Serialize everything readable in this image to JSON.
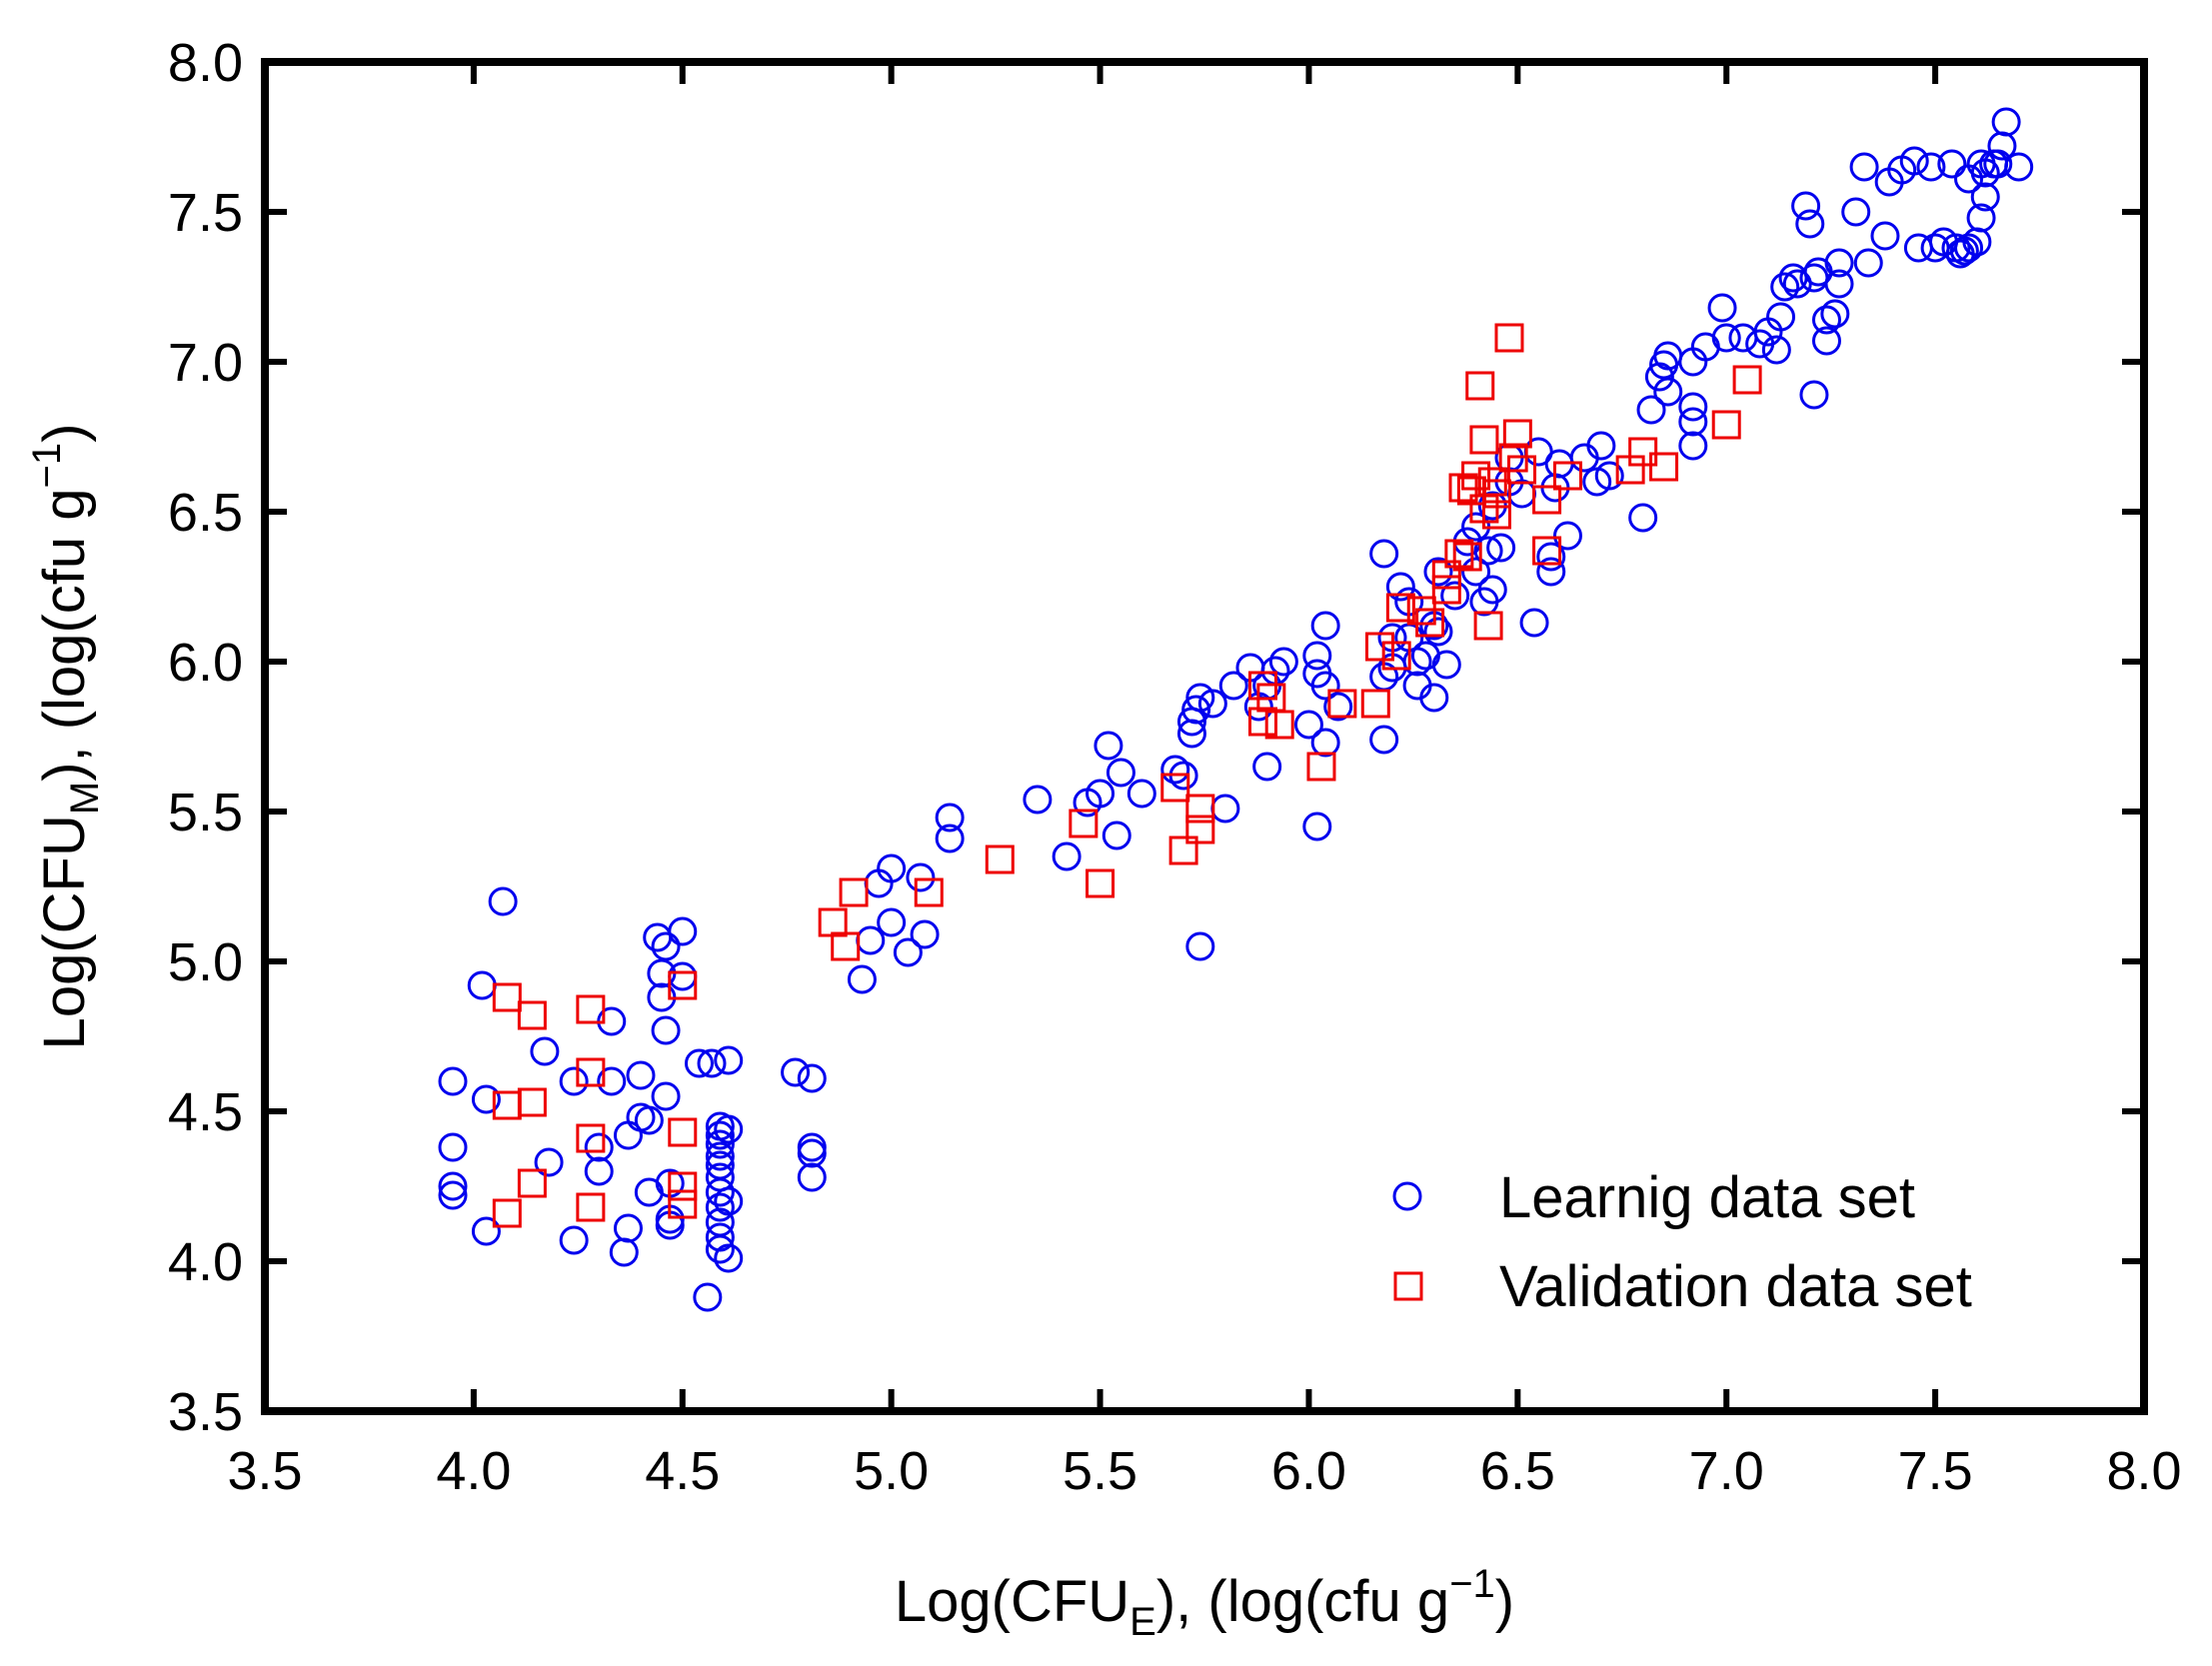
{
  "chart_data": {
    "type": "scatter",
    "title": "",
    "xlabel": {
      "base": "Log(CFU",
      "sub": "E",
      "rest": "), (log(cfu  g",
      "sup": "−1",
      "close": ")"
    },
    "ylabel": {
      "base": "Log(CFU",
      "sub": "M",
      "rest": "), (log(cfu  g",
      "sup": "−1",
      "close": ")"
    },
    "xlim": [
      3.5,
      8.0
    ],
    "ylim": [
      3.5,
      8.0
    ],
    "x_ticks": [
      "3.5",
      "4.0",
      "4.5",
      "5.0",
      "5.5",
      "6.0",
      "6.5",
      "7.0",
      "7.5",
      "8.0"
    ],
    "y_ticks": [
      "3.5",
      "4.0",
      "4.5",
      "5.0",
      "5.5",
      "6.0",
      "6.5",
      "7.0",
      "7.5",
      "8.0"
    ],
    "grid": false,
    "legend_position": "bottom-right",
    "colors": {
      "learning": "#0000ee",
      "validation": "#ee0000"
    },
    "series": [
      {
        "name": "Learnig data set",
        "marker": "circle",
        "points": [
          [
            3.95,
            4.6
          ],
          [
            3.95,
            4.38
          ],
          [
            3.95,
            4.25
          ],
          [
            3.95,
            4.22
          ],
          [
            4.02,
            4.92
          ],
          [
            4.03,
            4.54
          ],
          [
            4.03,
            4.1
          ],
          [
            4.07,
            5.2
          ],
          [
            4.17,
            4.7
          ],
          [
            4.18,
            4.33
          ],
          [
            4.24,
            4.07
          ],
          [
            4.24,
            4.6
          ],
          [
            4.3,
            4.38
          ],
          [
            4.3,
            4.3
          ],
          [
            4.33,
            4.6
          ],
          [
            4.33,
            4.8
          ],
          [
            4.36,
            4.03
          ],
          [
            4.37,
            4.42
          ],
          [
            4.37,
            4.11
          ],
          [
            4.4,
            4.62
          ],
          [
            4.4,
            4.48
          ],
          [
            4.42,
            4.23
          ],
          [
            4.42,
            4.47
          ],
          [
            4.44,
            5.08
          ],
          [
            4.45,
            4.96
          ],
          [
            4.45,
            4.88
          ],
          [
            4.46,
            4.77
          ],
          [
            4.46,
            5.05
          ],
          [
            4.46,
            4.55
          ],
          [
            4.47,
            4.26
          ],
          [
            4.47,
            4.14
          ],
          [
            4.47,
            4.12
          ],
          [
            4.5,
            5.1
          ],
          [
            4.5,
            4.95
          ],
          [
            4.54,
            4.66
          ],
          [
            4.56,
            3.88
          ],
          [
            4.57,
            4.66
          ],
          [
            4.61,
            4.67
          ],
          [
            4.59,
            4.45
          ],
          [
            4.59,
            4.42
          ],
          [
            4.59,
            4.39
          ],
          [
            4.59,
            4.35
          ],
          [
            4.59,
            4.32
          ],
          [
            4.59,
            4.28
          ],
          [
            4.59,
            4.23
          ],
          [
            4.59,
            4.18
          ],
          [
            4.59,
            4.13
          ],
          [
            4.59,
            4.08
          ],
          [
            4.59,
            4.04
          ],
          [
            4.61,
            4.01
          ],
          [
            4.61,
            4.44
          ],
          [
            4.61,
            4.2
          ],
          [
            4.77,
            4.63
          ],
          [
            4.81,
            4.61
          ],
          [
            4.81,
            4.38
          ],
          [
            4.81,
            4.36
          ],
          [
            4.81,
            4.28
          ],
          [
            4.93,
            4.94
          ],
          [
            4.95,
            5.07
          ],
          [
            4.97,
            5.26
          ],
          [
            5.0,
            5.31
          ],
          [
            5.0,
            5.13
          ],
          [
            5.04,
            5.03
          ],
          [
            5.07,
            5.28
          ],
          [
            5.08,
            5.09
          ],
          [
            5.14,
            5.48
          ],
          [
            5.14,
            5.41
          ],
          [
            5.35,
            5.54
          ],
          [
            5.42,
            5.35
          ],
          [
            5.47,
            5.53
          ],
          [
            5.5,
            5.56
          ],
          [
            5.52,
            5.72
          ],
          [
            5.54,
            5.42
          ],
          [
            5.55,
            5.63
          ],
          [
            5.6,
            5.56
          ],
          [
            5.68,
            5.64
          ],
          [
            5.7,
            5.62
          ],
          [
            5.72,
            5.76
          ],
          [
            5.72,
            5.8
          ],
          [
            5.73,
            5.84
          ],
          [
            5.74,
            5.88
          ],
          [
            5.74,
            5.05
          ],
          [
            5.77,
            5.86
          ],
          [
            5.8,
            5.51
          ],
          [
            5.82,
            5.92
          ],
          [
            5.86,
            5.98
          ],
          [
            5.88,
            5.85
          ],
          [
            5.9,
            5.65
          ],
          [
            5.9,
            5.92
          ],
          [
            5.92,
            5.97
          ],
          [
            5.94,
            6.0
          ],
          [
            6.0,
            5.79
          ],
          [
            6.02,
            6.02
          ],
          [
            6.02,
            5.45
          ],
          [
            6.02,
            5.96
          ],
          [
            6.04,
            6.12
          ],
          [
            6.04,
            5.92
          ],
          [
            6.04,
            5.73
          ],
          [
            6.07,
            5.85
          ],
          [
            6.18,
            6.36
          ],
          [
            6.18,
            5.95
          ],
          [
            6.18,
            5.74
          ],
          [
            6.2,
            6.08
          ],
          [
            6.2,
            5.98
          ],
          [
            6.22,
            6.25
          ],
          [
            6.24,
            6.2
          ],
          [
            6.24,
            6.08
          ],
          [
            6.26,
            6.0
          ],
          [
            6.26,
            5.92
          ],
          [
            6.28,
            6.02
          ],
          [
            6.3,
            5.88
          ],
          [
            6.3,
            6.12
          ],
          [
            6.31,
            6.3
          ],
          [
            6.31,
            6.1
          ],
          [
            6.33,
            5.99
          ],
          [
            6.35,
            6.22
          ],
          [
            6.38,
            6.4
          ],
          [
            6.4,
            6.45
          ],
          [
            6.4,
            6.3
          ],
          [
            6.42,
            6.2
          ],
          [
            6.43,
            6.37
          ],
          [
            6.44,
            6.24
          ],
          [
            6.44,
            6.52
          ],
          [
            6.46,
            6.38
          ],
          [
            6.48,
            6.68
          ],
          [
            6.48,
            6.6
          ],
          [
            6.51,
            6.56
          ],
          [
            6.54,
            6.13
          ],
          [
            6.55,
            6.7
          ],
          [
            6.58,
            6.35
          ],
          [
            6.58,
            6.3
          ],
          [
            6.59,
            6.58
          ],
          [
            6.6,
            6.66
          ],
          [
            6.62,
            6.42
          ],
          [
            6.66,
            6.68
          ],
          [
            6.69,
            6.6
          ],
          [
            6.7,
            6.72
          ],
          [
            6.72,
            6.62
          ],
          [
            6.8,
            6.48
          ],
          [
            6.82,
            6.84
          ],
          [
            6.84,
            6.95
          ],
          [
            6.85,
            6.99
          ],
          [
            6.86,
            7.02
          ],
          [
            6.86,
            6.9
          ],
          [
            6.92,
            6.85
          ],
          [
            6.92,
            6.8
          ],
          [
            6.92,
            6.72
          ],
          [
            6.92,
            7.0
          ],
          [
            6.95,
            7.05
          ],
          [
            6.99,
            7.18
          ],
          [
            7.0,
            7.08
          ],
          [
            7.04,
            7.08
          ],
          [
            7.08,
            7.06
          ],
          [
            7.1,
            7.1
          ],
          [
            7.12,
            7.04
          ],
          [
            7.13,
            7.15
          ],
          [
            7.14,
            7.25
          ],
          [
            7.16,
            7.28
          ],
          [
            7.17,
            7.26
          ],
          [
            7.19,
            7.52
          ],
          [
            7.2,
            7.46
          ],
          [
            7.21,
            7.28
          ],
          [
            7.21,
            6.89
          ],
          [
            7.22,
            7.3
          ],
          [
            7.24,
            7.14
          ],
          [
            7.24,
            7.07
          ],
          [
            7.26,
            7.16
          ],
          [
            7.27,
            7.33
          ],
          [
            7.27,
            7.26
          ],
          [
            7.31,
            7.5
          ],
          [
            7.33,
            7.65
          ],
          [
            7.34,
            7.33
          ],
          [
            7.38,
            7.42
          ],
          [
            7.39,
            7.6
          ],
          [
            7.42,
            7.64
          ],
          [
            7.45,
            7.67
          ],
          [
            7.46,
            7.38
          ],
          [
            7.49,
            7.65
          ],
          [
            7.5,
            7.38
          ],
          [
            7.52,
            7.4
          ],
          [
            7.54,
            7.66
          ],
          [
            7.55,
            7.38
          ],
          [
            7.56,
            7.36
          ],
          [
            7.57,
            7.37
          ],
          [
            7.58,
            7.38
          ],
          [
            7.58,
            7.61
          ],
          [
            7.6,
            7.4
          ],
          [
            7.61,
            7.66
          ],
          [
            7.61,
            7.48
          ],
          [
            7.62,
            7.55
          ],
          [
            7.62,
            7.63
          ],
          [
            7.64,
            7.66
          ],
          [
            7.65,
            7.66
          ],
          [
            7.66,
            7.72
          ],
          [
            7.67,
            7.8
          ],
          [
            7.7,
            7.65
          ]
        ]
      },
      {
        "name": "Validation data set",
        "marker": "square",
        "points": [
          [
            4.08,
            4.88
          ],
          [
            4.08,
            4.52
          ],
          [
            4.08,
            4.16
          ],
          [
            4.14,
            4.82
          ],
          [
            4.14,
            4.53
          ],
          [
            4.14,
            4.26
          ],
          [
            4.28,
            4.84
          ],
          [
            4.28,
            4.63
          ],
          [
            4.28,
            4.41
          ],
          [
            4.28,
            4.18
          ],
          [
            4.5,
            4.92
          ],
          [
            4.5,
            4.43
          ],
          [
            4.5,
            4.25
          ],
          [
            4.5,
            4.19
          ],
          [
            4.86,
            5.13
          ],
          [
            4.89,
            5.05
          ],
          [
            4.91,
            5.23
          ],
          [
            5.09,
            5.23
          ],
          [
            5.26,
            5.34
          ],
          [
            5.46,
            5.46
          ],
          [
            5.5,
            5.26
          ],
          [
            5.68,
            5.58
          ],
          [
            5.7,
            5.37
          ],
          [
            5.74,
            5.51
          ],
          [
            5.74,
            5.44
          ],
          [
            5.89,
            5.92
          ],
          [
            5.89,
            5.8
          ],
          [
            5.91,
            5.88
          ],
          [
            5.93,
            5.79
          ],
          [
            6.03,
            5.65
          ],
          [
            6.08,
            5.86
          ],
          [
            6.16,
            5.86
          ],
          [
            6.17,
            6.05
          ],
          [
            6.21,
            6.02
          ],
          [
            6.22,
            6.18
          ],
          [
            6.27,
            6.17
          ],
          [
            6.29,
            6.13
          ],
          [
            6.33,
            6.24
          ],
          [
            6.33,
            6.29
          ],
          [
            6.36,
            6.36
          ],
          [
            6.37,
            6.58
          ],
          [
            6.38,
            6.35
          ],
          [
            6.39,
            6.57
          ],
          [
            6.4,
            6.62
          ],
          [
            6.41,
            6.92
          ],
          [
            6.42,
            6.74
          ],
          [
            6.42,
            6.51
          ],
          [
            6.43,
            6.12
          ],
          [
            6.44,
            6.6
          ],
          [
            6.45,
            6.56
          ],
          [
            6.45,
            6.49
          ],
          [
            6.48,
            7.08
          ],
          [
            6.49,
            6.68
          ],
          [
            6.5,
            6.76
          ],
          [
            6.51,
            6.64
          ],
          [
            6.57,
            6.54
          ],
          [
            6.57,
            6.37
          ],
          [
            6.62,
            6.62
          ],
          [
            6.77,
            6.64
          ],
          [
            6.8,
            6.7
          ],
          [
            6.85,
            6.65
          ],
          [
            7.0,
            6.79
          ],
          [
            7.05,
            6.94
          ]
        ]
      }
    ]
  }
}
